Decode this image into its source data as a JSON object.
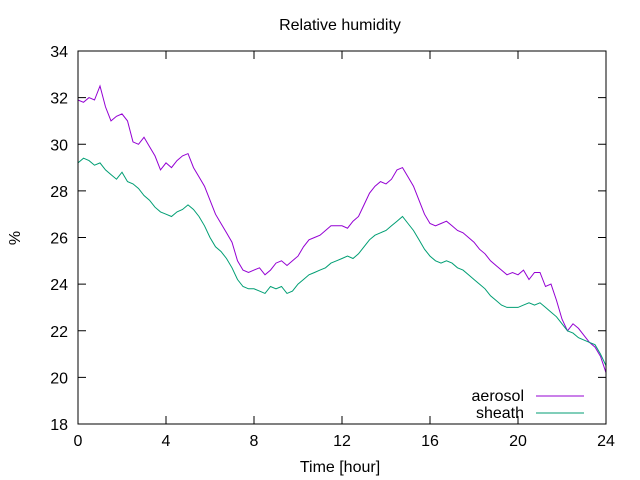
{
  "chart_data": {
    "type": "line",
    "title": "Relative humidity",
    "xlabel": "Time [hour]",
    "ylabel": "%",
    "xlim": [
      0,
      24
    ],
    "ylim": [
      18,
      34
    ],
    "xticks": [
      0,
      4,
      8,
      12,
      16,
      20,
      24
    ],
    "yticks": [
      18,
      20,
      22,
      24,
      26,
      28,
      30,
      32,
      34
    ],
    "grid": false,
    "legend_position": "bottom-right",
    "series": [
      {
        "name": "aerosol",
        "color": "#9400d3",
        "x": [
          0.0,
          0.25,
          0.5,
          0.75,
          1.0,
          1.25,
          1.5,
          1.75,
          2.0,
          2.25,
          2.5,
          2.75,
          3.0,
          3.25,
          3.5,
          3.75,
          4.0,
          4.25,
          4.5,
          4.75,
          5.0,
          5.25,
          5.5,
          5.75,
          6.0,
          6.25,
          6.5,
          6.75,
          7.0,
          7.25,
          7.5,
          7.75,
          8.0,
          8.25,
          8.5,
          8.75,
          9.0,
          9.25,
          9.5,
          9.75,
          10.0,
          10.25,
          10.5,
          10.75,
          11.0,
          11.25,
          11.5,
          11.75,
          12.0,
          12.25,
          12.5,
          12.75,
          13.0,
          13.25,
          13.5,
          13.75,
          14.0,
          14.25,
          14.5,
          14.75,
          15.0,
          15.25,
          15.5,
          15.75,
          16.0,
          16.25,
          16.5,
          16.75,
          17.0,
          17.25,
          17.5,
          17.75,
          18.0,
          18.25,
          18.5,
          18.75,
          19.0,
          19.25,
          19.5,
          19.75,
          20.0,
          20.25,
          20.5,
          20.75,
          21.0,
          21.25,
          21.5,
          21.75,
          22.0,
          22.25,
          22.5,
          22.75,
          23.0,
          23.25,
          23.5,
          23.75,
          24.0
        ],
        "y": [
          31.9,
          31.8,
          32.0,
          31.9,
          32.5,
          31.6,
          31.0,
          31.2,
          31.3,
          31.0,
          30.1,
          30.0,
          30.3,
          29.9,
          29.5,
          28.9,
          29.2,
          29.0,
          29.3,
          29.5,
          29.6,
          29.0,
          28.6,
          28.2,
          27.6,
          27.0,
          26.6,
          26.2,
          25.8,
          25.0,
          24.6,
          24.5,
          24.6,
          24.7,
          24.4,
          24.6,
          24.9,
          25.0,
          24.8,
          25.0,
          25.2,
          25.6,
          25.9,
          26.0,
          26.1,
          26.3,
          26.5,
          26.5,
          26.5,
          26.4,
          26.7,
          26.9,
          27.4,
          27.9,
          28.2,
          28.4,
          28.3,
          28.5,
          28.9,
          29.0,
          28.6,
          28.2,
          27.6,
          27.0,
          26.6,
          26.5,
          26.6,
          26.7,
          26.5,
          26.3,
          26.2,
          26.0,
          25.8,
          25.5,
          25.3,
          25.0,
          24.8,
          24.6,
          24.4,
          24.5,
          24.4,
          24.6,
          24.2,
          24.5,
          24.5,
          23.9,
          24.0,
          23.3,
          22.5,
          22.0,
          22.3,
          22.1,
          21.8,
          21.5,
          21.3,
          20.9,
          20.2
        ]
      },
      {
        "name": "sheath",
        "color": "#009e73",
        "x": [
          0.0,
          0.25,
          0.5,
          0.75,
          1.0,
          1.25,
          1.5,
          1.75,
          2.0,
          2.25,
          2.5,
          2.75,
          3.0,
          3.25,
          3.5,
          3.75,
          4.0,
          4.25,
          4.5,
          4.75,
          5.0,
          5.25,
          5.5,
          5.75,
          6.0,
          6.25,
          6.5,
          6.75,
          7.0,
          7.25,
          7.5,
          7.75,
          8.0,
          8.25,
          8.5,
          8.75,
          9.0,
          9.25,
          9.5,
          9.75,
          10.0,
          10.25,
          10.5,
          10.75,
          11.0,
          11.25,
          11.5,
          11.75,
          12.0,
          12.25,
          12.5,
          12.75,
          13.0,
          13.25,
          13.5,
          13.75,
          14.0,
          14.25,
          14.5,
          14.75,
          15.0,
          15.25,
          15.5,
          15.75,
          16.0,
          16.25,
          16.5,
          16.75,
          17.0,
          17.25,
          17.5,
          17.75,
          18.0,
          18.25,
          18.5,
          18.75,
          19.0,
          19.25,
          19.5,
          19.75,
          20.0,
          20.25,
          20.5,
          20.75,
          21.0,
          21.25,
          21.5,
          21.75,
          22.0,
          22.25,
          22.5,
          22.75,
          23.0,
          23.25,
          23.5,
          23.75,
          24.0
        ],
        "y": [
          29.2,
          29.4,
          29.3,
          29.1,
          29.2,
          28.9,
          28.7,
          28.5,
          28.8,
          28.4,
          28.3,
          28.1,
          27.8,
          27.6,
          27.3,
          27.1,
          27.0,
          26.9,
          27.1,
          27.2,
          27.4,
          27.2,
          26.9,
          26.5,
          26.0,
          25.6,
          25.4,
          25.1,
          24.7,
          24.2,
          23.9,
          23.8,
          23.8,
          23.7,
          23.6,
          23.9,
          23.8,
          23.9,
          23.6,
          23.7,
          24.0,
          24.2,
          24.4,
          24.5,
          24.6,
          24.7,
          24.9,
          25.0,
          25.1,
          25.2,
          25.1,
          25.3,
          25.6,
          25.9,
          26.1,
          26.2,
          26.3,
          26.5,
          26.7,
          26.9,
          26.6,
          26.3,
          25.9,
          25.5,
          25.2,
          25.0,
          24.9,
          25.0,
          24.9,
          24.7,
          24.6,
          24.4,
          24.2,
          24.0,
          23.8,
          23.5,
          23.3,
          23.1,
          23.0,
          23.0,
          23.0,
          23.1,
          23.2,
          23.1,
          23.2,
          23.0,
          22.8,
          22.6,
          22.3,
          22.0,
          21.9,
          21.7,
          21.6,
          21.5,
          21.4,
          21.0,
          20.5
        ]
      }
    ]
  }
}
